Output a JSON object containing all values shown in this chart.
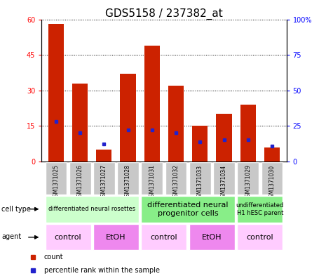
{
  "title": "GDS5158 / 237382_at",
  "samples": [
    "GSM1371025",
    "GSM1371026",
    "GSM1371027",
    "GSM1371028",
    "GSM1371031",
    "GSM1371032",
    "GSM1371033",
    "GSM1371034",
    "GSM1371029",
    "GSM1371030"
  ],
  "counts": [
    58,
    33,
    5,
    37,
    49,
    32,
    15,
    20,
    24,
    6
  ],
  "percentiles": [
    28,
    20,
    12.5,
    22,
    22,
    20,
    14,
    15.5,
    15.5,
    11
  ],
  "left_ylim": [
    0,
    60
  ],
  "right_ylim": [
    0,
    100
  ],
  "left_yticks": [
    0,
    15,
    30,
    45,
    60
  ],
  "right_yticks": [
    0,
    25,
    50,
    75,
    100
  ],
  "right_yticklabels": [
    "0",
    "25",
    "50",
    "75",
    "100%"
  ],
  "bar_color": "#cc2200",
  "dot_color": "#2222cc",
  "cell_type_groups": [
    {
      "label": "differentiated neural rosettes",
      "start": 0,
      "end": 4,
      "color": "#ccffcc",
      "fontsize": 6
    },
    {
      "label": "differentiated neural\nprogenitor cells",
      "start": 4,
      "end": 8,
      "color": "#88ee88",
      "fontsize": 8
    },
    {
      "label": "undifferentiated\nH1 hESC parent",
      "start": 8,
      "end": 10,
      "color": "#88ee88",
      "fontsize": 6
    }
  ],
  "agent_groups": [
    {
      "label": "control",
      "start": 0,
      "end": 2,
      "color": "#ffccff"
    },
    {
      "label": "EtOH",
      "start": 2,
      "end": 4,
      "color": "#ee88ee"
    },
    {
      "label": "control",
      "start": 4,
      "end": 6,
      "color": "#ffccff"
    },
    {
      "label": "EtOH",
      "start": 6,
      "end": 8,
      "color": "#ee88ee"
    },
    {
      "label": "control",
      "start": 8,
      "end": 10,
      "color": "#ffccff"
    }
  ],
  "title_fontsize": 11,
  "tick_fontsize": 7,
  "sample_fontsize": 5.5,
  "gridline_ticks": [
    15,
    30,
    45
  ]
}
